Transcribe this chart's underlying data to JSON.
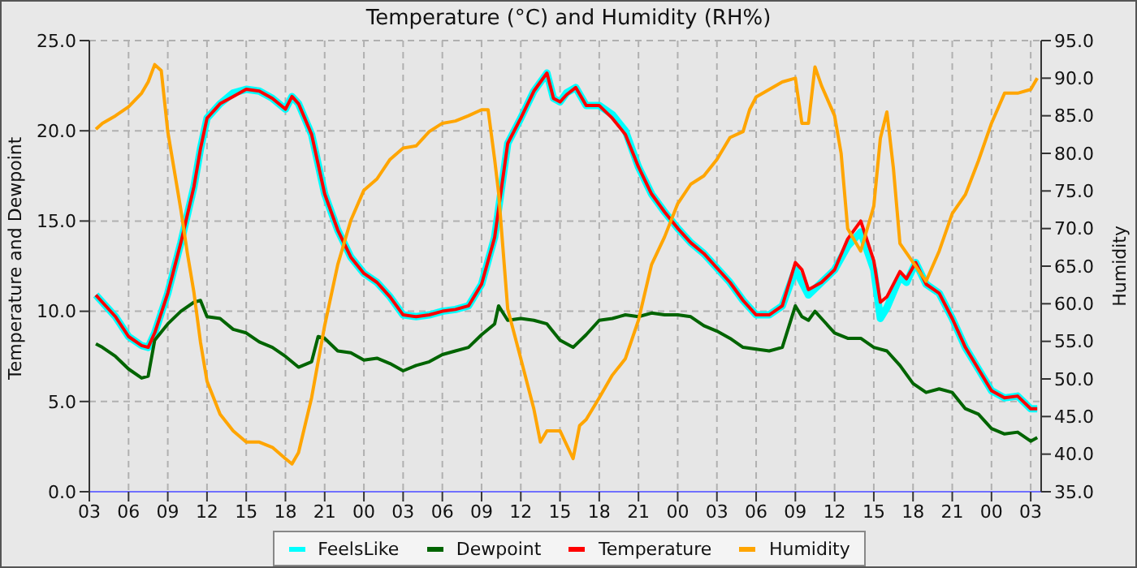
{
  "chart_data": {
    "type": "line",
    "title": "Temperature (°C) and Humidity (RH%)",
    "ylabel": "Temperature and Dewpoint",
    "y2label": "Humidity",
    "xlim": [
      3,
      75.8
    ],
    "xticks": [
      {
        "value": 3,
        "label": "03"
      },
      {
        "value": 6,
        "label": "06"
      },
      {
        "value": 9,
        "label": "09"
      },
      {
        "value": 12,
        "label": "12"
      },
      {
        "value": 15,
        "label": "15"
      },
      {
        "value": 18,
        "label": "18"
      },
      {
        "value": 21,
        "label": "21"
      },
      {
        "value": 24,
        "label": "00"
      },
      {
        "value": 27,
        "label": "03"
      },
      {
        "value": 30,
        "label": "06"
      },
      {
        "value": 33,
        "label": "09"
      },
      {
        "value": 36,
        "label": "12"
      },
      {
        "value": 39,
        "label": "15"
      },
      {
        "value": 42,
        "label": "18"
      },
      {
        "value": 45,
        "label": "21"
      },
      {
        "value": 48,
        "label": "00"
      },
      {
        "value": 51,
        "label": "03"
      },
      {
        "value": 54,
        "label": "06"
      },
      {
        "value": 57,
        "label": "09"
      },
      {
        "value": 60,
        "label": "12"
      },
      {
        "value": 63,
        "label": "15"
      },
      {
        "value": 66,
        "label": "18"
      },
      {
        "value": 69,
        "label": "21"
      },
      {
        "value": 72,
        "label": "00"
      },
      {
        "value": 75,
        "label": "03"
      }
    ],
    "ylim": [
      0,
      25
    ],
    "yticks": [
      {
        "value": 0,
        "label": "0.0"
      },
      {
        "value": 5,
        "label": "5.0"
      },
      {
        "value": 10,
        "label": "10.0"
      },
      {
        "value": 15,
        "label": "15.0"
      },
      {
        "value": 20,
        "label": "20.0"
      },
      {
        "value": 25,
        "label": "25.0"
      }
    ],
    "y2lim": [
      35,
      95
    ],
    "y2ticks": [
      {
        "value": 35,
        "label": "35.0"
      },
      {
        "value": 40,
        "label": "40.0"
      },
      {
        "value": 45,
        "label": "45.0"
      },
      {
        "value": 50,
        "label": "50.0"
      },
      {
        "value": 55,
        "label": "55.0"
      },
      {
        "value": 60,
        "label": "60.0"
      },
      {
        "value": 65,
        "label": "65.0"
      },
      {
        "value": 70,
        "label": "70.0"
      },
      {
        "value": 75,
        "label": "75.0"
      },
      {
        "value": 80,
        "label": "80.0"
      },
      {
        "value": 85,
        "label": "85.0"
      },
      {
        "value": 90,
        "label": "90.0"
      },
      {
        "value": 95,
        "label": "95.0"
      }
    ],
    "grid": true,
    "legend": "bottom",
    "marker": "none",
    "line_style": "solid",
    "series": [
      {
        "name": "FeelsLike",
        "color": "#00ffff",
        "x": [
          3.5,
          4,
          5,
          6,
          7,
          7.5,
          8,
          9,
          10,
          11,
          11.5,
          12,
          13,
          14,
          15,
          16,
          17,
          18,
          18.5,
          19,
          20,
          21,
          22,
          23,
          24,
          25,
          26,
          27,
          28,
          29,
          30,
          31,
          32,
          33,
          34,
          35,
          36,
          37,
          38,
          38.5,
          39,
          39.5,
          40.2,
          41,
          42,
          43,
          44,
          45,
          46,
          47,
          48,
          49,
          50,
          51,
          52,
          53,
          54,
          55,
          56,
          57,
          57.5,
          58,
          59,
          60,
          61,
          62,
          63,
          63.5,
          64,
          65,
          65.5,
          66.2,
          67,
          68,
          69,
          70,
          71,
          72,
          73,
          74,
          75,
          75.5
        ],
        "values": [
          10.9,
          10.5,
          9.7,
          8.6,
          8.1,
          8.0,
          8.8,
          11.0,
          13.8,
          16.9,
          19,
          20.7,
          21.5,
          22.1,
          22.3,
          22.2,
          21.8,
          21.2,
          21.9,
          21.5,
          19.8,
          16.5,
          14.5,
          13,
          12.1,
          11.6,
          10.8,
          9.8,
          9.7,
          9.8,
          10.0,
          10.1,
          10.3,
          11.5,
          14.1,
          19.3,
          20.7,
          22.2,
          23.2,
          21.8,
          21.6,
          22.1,
          22.4,
          21.4,
          21.4,
          20.9,
          20.0,
          18,
          16.5,
          15.5,
          14.6,
          13.8,
          13.2,
          12.4,
          11.6,
          10.6,
          9.8,
          9.8,
          10.3,
          12.3,
          11.6,
          10.9,
          11.6,
          12.3,
          13.6,
          14.4,
          12.3,
          9.6,
          10.2,
          11.9,
          11.6,
          12.7,
          11.5,
          11.0,
          9.6,
          8.0,
          6.8,
          5.6,
          5.2,
          5.3,
          4.6,
          4.6
        ]
      },
      {
        "name": "Dewpoint",
        "color": "#006400",
        "x": [
          3.5,
          4,
          5,
          6,
          7,
          7.5,
          8,
          9,
          10,
          11,
          11.5,
          12,
          13,
          14,
          15,
          16,
          17,
          18,
          19,
          20,
          20.5,
          21,
          22,
          23,
          24,
          25,
          26,
          27,
          28,
          29,
          30,
          31,
          32,
          33,
          34,
          34.3,
          35,
          36,
          37,
          38,
          39,
          40,
          41,
          42,
          43,
          44,
          45,
          46,
          47,
          48,
          49,
          50,
          51,
          52,
          53,
          54,
          55,
          56,
          57,
          57.5,
          58,
          58.5,
          59,
          60,
          61,
          62,
          63,
          64,
          65,
          66,
          67,
          68,
          69,
          70,
          71,
          72,
          73,
          74,
          75,
          75.5
        ],
        "values": [
          8.2,
          8.0,
          7.5,
          6.8,
          6.3,
          6.4,
          8.4,
          9.3,
          10.0,
          10.5,
          10.6,
          9.7,
          9.6,
          9.0,
          8.8,
          8.3,
          8.0,
          7.5,
          6.9,
          7.2,
          8.6,
          8.5,
          7.8,
          7.7,
          7.3,
          7.4,
          7.1,
          6.7,
          7.0,
          7.2,
          7.6,
          7.8,
          8.0,
          8.7,
          9.3,
          10.3,
          9.5,
          9.6,
          9.5,
          9.3,
          8.4,
          8.0,
          8.7,
          9.5,
          9.6,
          9.8,
          9.7,
          9.9,
          9.8,
          9.8,
          9.7,
          9.2,
          8.9,
          8.5,
          8.0,
          7.9,
          7.8,
          8.0,
          10.3,
          9.7,
          9.5,
          10.0,
          9.6,
          8.8,
          8.5,
          8.5,
          8.0,
          7.8,
          7.0,
          6.0,
          5.5,
          5.7,
          5.5,
          4.6,
          4.3,
          3.5,
          3.2,
          3.3,
          2.8,
          3.0
        ]
      },
      {
        "name": "Temperature",
        "color": "#ff0000",
        "x": [
          3.5,
          4,
          5,
          6,
          7,
          7.5,
          8,
          9,
          10,
          11,
          11.5,
          12,
          13,
          14,
          15,
          16,
          17,
          18,
          18.5,
          19,
          20,
          21,
          22,
          23,
          24,
          25,
          26,
          27,
          28,
          29,
          30,
          31,
          32,
          33,
          34,
          35,
          36,
          37,
          38,
          38.5,
          39,
          39.5,
          40.2,
          41,
          42,
          43,
          44,
          45,
          46,
          47,
          48,
          49,
          50,
          51,
          52,
          53,
          54,
          55,
          56,
          57,
          57.5,
          58,
          59,
          60,
          61,
          62,
          63,
          63.5,
          64,
          65,
          65.5,
          66.2,
          67,
          68,
          69,
          70,
          71,
          72,
          73,
          74,
          75,
          75.5
        ],
        "values": [
          10.9,
          10.5,
          9.7,
          8.6,
          8.1,
          8.0,
          8.8,
          11.0,
          13.8,
          16.9,
          19,
          20.7,
          21.5,
          21.9,
          22.3,
          22.2,
          21.8,
          21.2,
          21.9,
          21.5,
          19.8,
          16.5,
          14.5,
          13,
          12.1,
          11.6,
          10.8,
          9.8,
          9.7,
          9.8,
          10.0,
          10.1,
          10.3,
          11.5,
          14.1,
          19.3,
          20.7,
          22.2,
          23.2,
          21.8,
          21.6,
          22.0,
          22.4,
          21.4,
          21.4,
          20.7,
          19.8,
          18,
          16.5,
          15.5,
          14.6,
          13.8,
          13.2,
          12.4,
          11.6,
          10.6,
          9.8,
          9.8,
          10.3,
          12.7,
          12.3,
          11.2,
          11.6,
          12.3,
          14.0,
          15.0,
          12.8,
          10.5,
          10.8,
          12.2,
          11.8,
          12.7,
          11.5,
          11.0,
          9.6,
          8.0,
          6.8,
          5.6,
          5.2,
          5.3,
          4.6,
          4.6
        ]
      },
      {
        "name": "Humidity",
        "color": "#ffa500",
        "axis": "y2",
        "x": [
          3.5,
          4,
          5,
          6,
          7,
          7.5,
          8,
          8.5,
          9,
          10,
          10.5,
          11,
          11.5,
          12,
          13,
          14,
          15,
          16,
          17,
          18,
          18.5,
          19,
          20,
          21,
          22,
          23,
          24,
          25,
          26,
          27,
          28,
          29,
          30,
          31,
          32,
          33,
          33.5,
          34,
          34.3,
          35,
          36,
          37,
          37.5,
          38,
          39,
          40,
          40.5,
          41,
          42,
          43,
          44,
          45,
          46,
          47,
          48,
          49,
          50,
          51,
          52,
          53,
          53.5,
          54,
          55,
          56,
          57,
          57.5,
          58,
          58.5,
          59,
          60,
          60.5,
          61,
          62,
          63,
          63.5,
          64,
          64.5,
          65,
          66,
          67,
          68,
          69,
          70,
          71,
          72,
          73,
          74,
          75,
          75.5
        ],
        "values": [
          83.2,
          84,
          85,
          86.2,
          88,
          89.5,
          91.8,
          91,
          82.9,
          72.5,
          66.7,
          61.5,
          54.9,
          49.7,
          45.3,
          43.1,
          41.6,
          41.6,
          40.9,
          39.4,
          38.7,
          40.2,
          47.5,
          57.1,
          65.2,
          71.1,
          75.1,
          76.6,
          79.2,
          80.7,
          81,
          82.9,
          84,
          84.3,
          85,
          85.8,
          85.8,
          79.2,
          74.8,
          59.3,
          52.7,
          46,
          41.6,
          43.1,
          43.1,
          39.4,
          43.8,
          44.6,
          47.5,
          50.5,
          52.7,
          57.8,
          65.2,
          68.9,
          73.3,
          75.9,
          77,
          79.2,
          82.1,
          82.9,
          85.8,
          87.5,
          88.5,
          89.5,
          90,
          84,
          84,
          91.5,
          89,
          85,
          80,
          70,
          67,
          73,
          82,
          85.5,
          78,
          68,
          65.5,
          63,
          67,
          72,
          74.5,
          79,
          84,
          88,
          88,
          88.5,
          90
        ]
      }
    ]
  }
}
